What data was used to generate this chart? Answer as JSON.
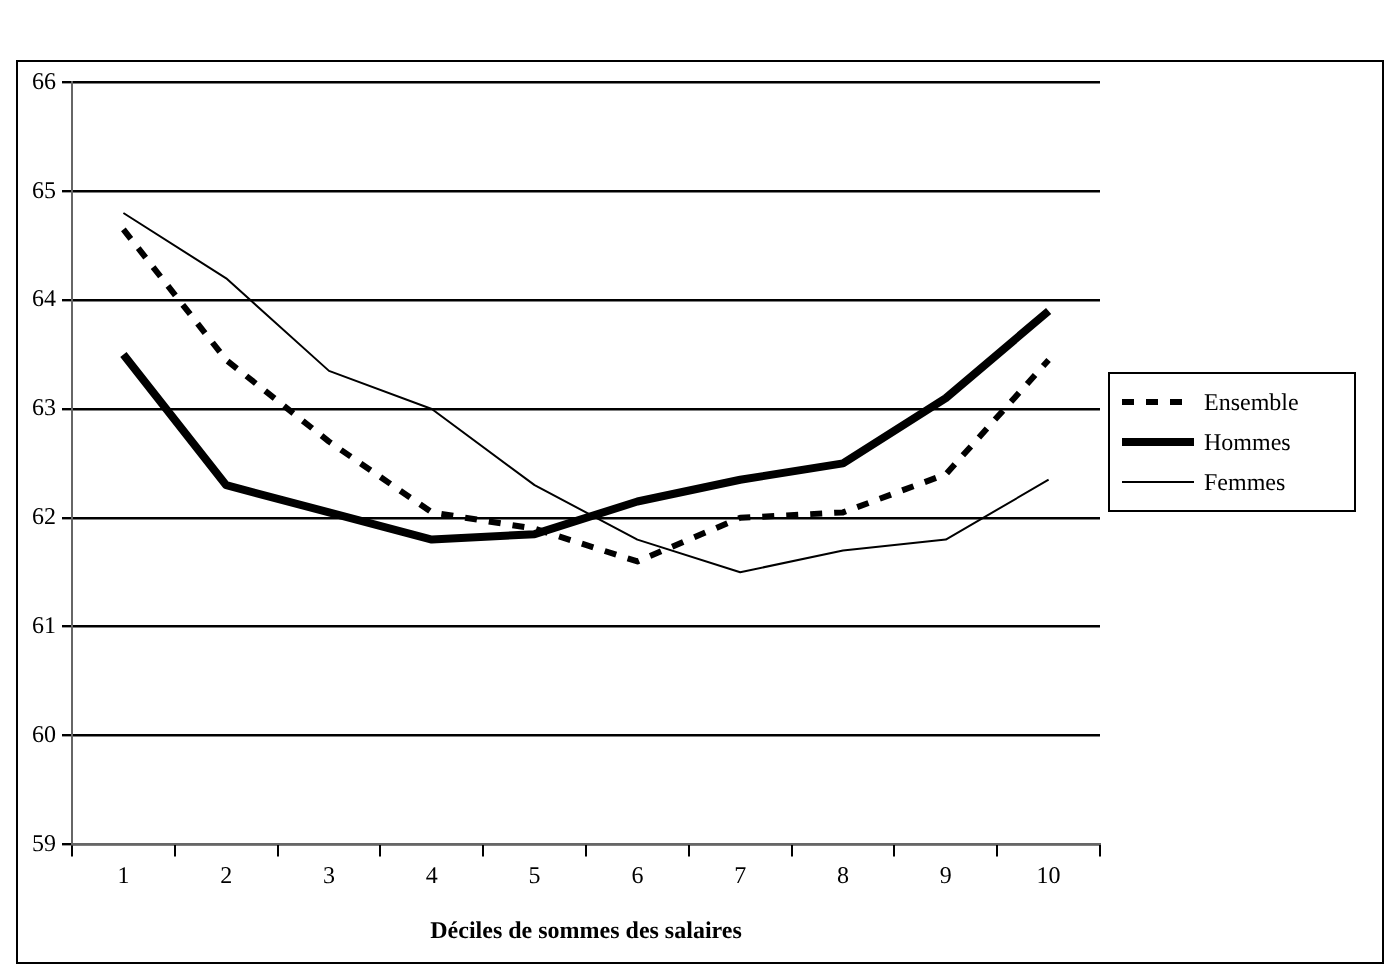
{
  "chart_data": {
    "type": "line",
    "xlabel": "Déciles de sommes des salaires",
    "categories": [
      "1",
      "2",
      "3",
      "4",
      "5",
      "6",
      "7",
      "8",
      "9",
      "10"
    ],
    "series": [
      {
        "name": "Ensemble",
        "color": "#000000",
        "line_style": "dashed",
        "values": [
          64.65,
          63.45,
          62.7,
          62.05,
          61.9,
          61.6,
          62.0,
          62.05,
          62.4,
          63.45
        ]
      },
      {
        "name": "Hommes",
        "color": "#000000",
        "line_style": "solid",
        "values": [
          63.5,
          62.3,
          62.05,
          61.8,
          61.85,
          62.15,
          62.35,
          62.5,
          63.1,
          63.9
        ]
      },
      {
        "name": "Femmes",
        "color": "#000000",
        "line_style": "solid",
        "values": [
          64.8,
          64.2,
          63.35,
          63.0,
          62.3,
          61.8,
          61.5,
          61.7,
          61.8,
          62.35
        ]
      }
    ],
    "ylim": [
      59,
      66
    ],
    "yticks": [
      59,
      60,
      61,
      62,
      63,
      64,
      65,
      66
    ],
    "grid": "y",
    "legend": "right",
    "marker": "none"
  }
}
